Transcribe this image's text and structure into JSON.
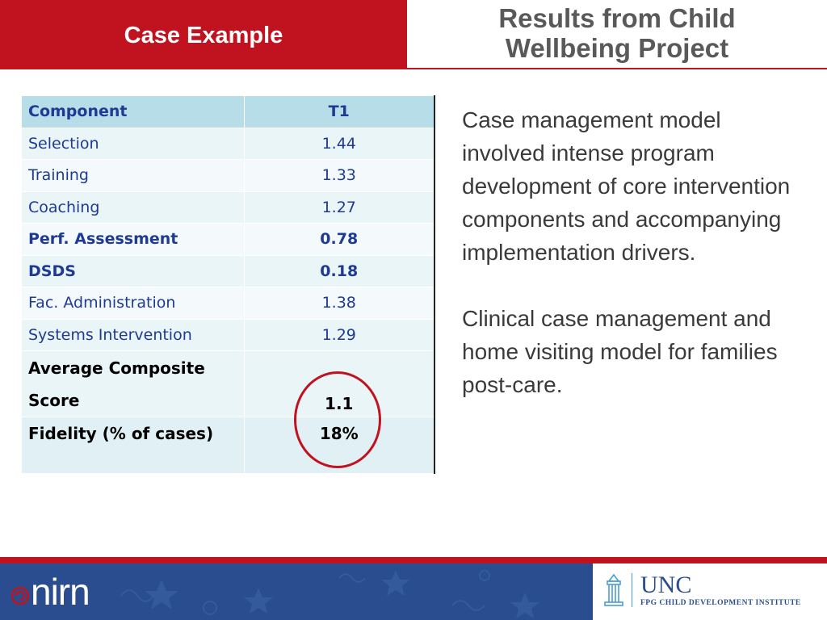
{
  "header": {
    "left_title": "Case Example",
    "right_title": "Results from Child Wellbeing Project"
  },
  "table": {
    "headers": [
      "Component",
      "T1"
    ],
    "rows": [
      {
        "component": "Selection",
        "t1": "1.44"
      },
      {
        "component": "Training",
        "t1": "1.33"
      },
      {
        "component": "Coaching",
        "t1": "1.27"
      },
      {
        "component": "Perf. Assessment",
        "t1": "0.78"
      },
      {
        "component": "DSDS",
        "t1": "0.18"
      },
      {
        "component": "Fac. Administration",
        "t1": "1.38"
      },
      {
        "component": "Systems Intervention",
        "t1": "1.29"
      }
    ],
    "average_label": "Average Composite Score",
    "average_value": "1.1",
    "fidelity_label": "Fidelity (% of cases)",
    "fidelity_value": "18%"
  },
  "body": {
    "paragraph1": "Case management model involved intense program development of core intervention components and accompanying implementation drivers.",
    "paragraph2": "Clinical case management and home visiting model for families post-care."
  },
  "footer": {
    "nirn_logo_text": "nirn",
    "unc_name": "UNC",
    "unc_sub": "FPG CHILD DEVELOPMENT INSTITUTE"
  },
  "colors": {
    "accent_red": "#c0121f",
    "header_gray": "#595959",
    "table_header_bg": "#b7dde8",
    "table_text_blue": "#1f3a93",
    "footer_blue": "#2a4d8f"
  },
  "icons": [
    "nirn-swirl-icon",
    "unc-bell-tower-icon"
  ]
}
